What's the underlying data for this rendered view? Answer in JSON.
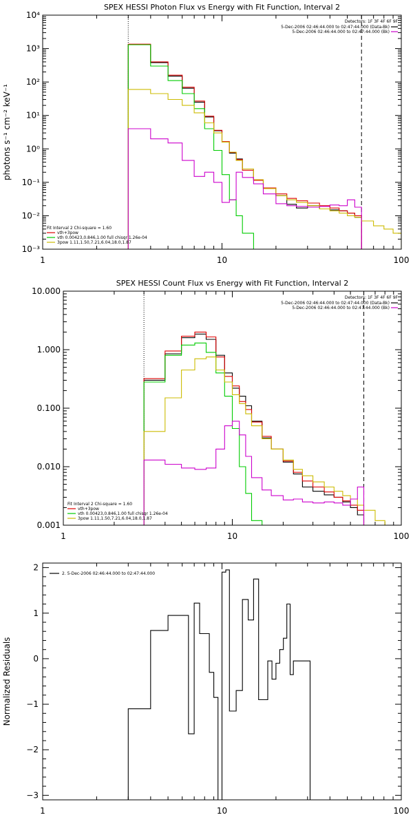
{
  "chart_data": [
    {
      "type": "line",
      "title": "SPEX HESSI Photon Flux vs Energy with Fit Function, Interval 2",
      "ylabel": "photons s⁻¹ cm⁻² keV⁻¹",
      "xlabel": "",
      "xscale": "log",
      "yscale": "log",
      "xlim": [
        1,
        100
      ],
      "ylim": [
        0.001,
        10000
      ],
      "x_ticks": [
        "1",
        "10",
        "100"
      ],
      "y_ticks": [
        "10⁻³",
        "10⁻²",
        "10⁻¹",
        "10⁰",
        "10¹",
        "10²",
        "10³",
        "10⁴"
      ],
      "vlines": [
        {
          "x": 3,
          "style": "dotted"
        },
        {
          "x": 60,
          "style": "dashed"
        }
      ],
      "legend_right": {
        "header": "Detectors: 1F 3F 4F 6F 9F",
        "entries": [
          {
            "label": "5-Dec-2006 02:46:44.000 to 02:47:44.000 (Data-Bk)",
            "color": "#000000"
          },
          {
            "label": "5-Dec-2006 02:46:44.000 to 02:47:44.000 (Bk)",
            "color": "#cc00cc"
          }
        ]
      },
      "legend_left": {
        "header": "Fit Interval 2   Chi-square = 1.60",
        "entries": [
          {
            "label": "vth+3pow",
            "color": "#dd0000"
          },
          {
            "label": "vth 0.00423,0.846,1.00   full chisqr 1.26e-04",
            "color": "#00cc00"
          },
          {
            "label": "3pow 1.11,1.50,7.21,6.04,18.0,1.87",
            "color": "#ccbb00"
          }
        ]
      },
      "series": [
        {
          "color": "#000000",
          "edges": [
            3,
            4,
            5,
            6,
            7,
            8,
            9,
            10,
            11,
            12,
            13,
            15,
            17,
            20,
            23,
            26,
            30,
            35,
            40,
            45,
            50,
            55,
            60
          ],
          "values": [
            1300,
            380,
            150,
            65,
            25,
            9,
            3.5,
            1.6,
            0.75,
            0.5,
            0.25,
            0.12,
            0.065,
            0.04,
            0.022,
            0.017,
            0.02,
            0.016,
            0.015,
            0.014,
            0.012,
            0.009
          ]
        },
        {
          "color": "#dd0000",
          "edges": [
            3,
            4,
            5,
            6,
            7,
            8,
            9,
            10,
            11,
            12,
            13,
            15,
            17,
            20,
            23,
            26,
            30,
            35,
            40,
            45,
            50,
            55,
            60
          ],
          "values": [
            1350,
            400,
            160,
            70,
            27,
            9.5,
            3.6,
            1.65,
            0.78,
            0.48,
            0.23,
            0.115,
            0.068,
            0.045,
            0.033,
            0.028,
            0.024,
            0.02,
            0.017,
            0.014,
            0.012,
            0.01
          ]
        },
        {
          "color": "#00cc00",
          "edges": [
            3,
            4,
            5,
            6,
            7,
            8,
            9,
            10,
            11,
            12,
            13,
            15
          ],
          "values": [
            1300,
            300,
            110,
            45,
            16,
            4,
            0.9,
            0.17,
            0.03,
            0.01,
            0.003,
            0.0008
          ]
        },
        {
          "color": "#ccbb00",
          "edges": [
            3,
            4,
            5,
            6,
            7,
            8,
            9,
            10,
            11,
            12,
            13,
            15,
            17,
            20,
            23,
            26,
            30,
            35,
            40,
            45,
            50,
            55,
            60,
            70,
            80,
            90,
            100
          ],
          "values": [
            60,
            45,
            30,
            20,
            12,
            6,
            3,
            1.6,
            0.8,
            0.45,
            0.25,
            0.12,
            0.065,
            0.04,
            0.03,
            0.025,
            0.02,
            0.016,
            0.014,
            0.012,
            0.01,
            0.009,
            0.007,
            0.005,
            0.004,
            0.003
          ]
        },
        {
          "color": "#cc00cc",
          "edges": [
            3,
            4,
            5,
            6,
            7,
            8,
            9,
            10,
            11,
            12,
            13,
            15,
            17,
            20,
            23,
            26,
            30,
            35,
            40,
            45,
            50,
            55,
            60
          ],
          "values": [
            4,
            2,
            1.5,
            0.45,
            0.15,
            0.2,
            0.1,
            0.025,
            0.03,
            0.2,
            0.14,
            0.09,
            0.045,
            0.023,
            0.02,
            0.019,
            0.018,
            0.019,
            0.021,
            0.02,
            0.03,
            0.018
          ]
        }
      ]
    },
    {
      "type": "line",
      "title": "SPEX HESSI Count Flux vs Energy with Fit Function, Interval 2",
      "ylabel": "",
      "xlabel": "",
      "xscale": "log",
      "yscale": "log",
      "xlim": [
        1,
        100
      ],
      "ylim": [
        0.001,
        10
      ],
      "x_ticks": [
        "1",
        "10",
        "100"
      ],
      "y_ticks": [
        "0.001",
        "0.010",
        "0.100",
        "1.000",
        "10.000"
      ],
      "vlines": [
        {
          "x": 3,
          "style": "dotted"
        },
        {
          "x": 60,
          "style": "dashed"
        }
      ],
      "legend_right": {
        "header": "Detectors: 1F 3F 4F 6F 9F",
        "entries": [
          {
            "label": "5-Dec-2006 02:46:44.000 to 02:47:44.000 (Data-Bk)",
            "color": "#000000"
          },
          {
            "label": "5-Dec-2006 02:46:44.000 to 02:47:44.000 (Bk)",
            "color": "#cc00cc"
          }
        ]
      },
      "legend_left": {
        "header": "Fit Interval 2   Chi-square = 1.60",
        "entries": [
          {
            "label": "vth+3pow",
            "color": "#dd0000"
          },
          {
            "label": "vth 0.00423,0.846,1.00   full chisqr 1.26e-04",
            "color": "#00cc00"
          },
          {
            "label": "3pow 1.11,1.50,7.21,6.04,18.0,1.87",
            "color": "#ccbb00"
          }
        ]
      },
      "series": [
        {
          "color": "#000000",
          "edges": [
            3,
            4,
            5,
            6,
            7,
            8,
            9,
            10,
            11,
            12,
            13,
            15,
            17,
            20,
            23,
            26,
            30,
            35,
            40,
            45,
            50,
            55,
            60
          ],
          "values": [
            0.3,
            0.85,
            1.6,
            1.85,
            1.5,
            0.8,
            0.4,
            0.22,
            0.16,
            0.11,
            0.06,
            0.031,
            0.02,
            0.012,
            0.0075,
            0.0045,
            0.0038,
            0.0033,
            0.003,
            0.0025,
            0.002,
            0.0015,
            0.0014
          ]
        },
        {
          "color": "#dd0000",
          "edges": [
            3,
            4,
            5,
            6,
            7,
            8,
            9,
            10,
            11,
            12,
            13,
            15,
            17,
            20,
            23,
            26,
            30,
            35,
            40,
            45,
            50,
            55,
            60
          ],
          "values": [
            0.32,
            0.95,
            1.7,
            2.0,
            1.65,
            0.75,
            0.35,
            0.24,
            0.13,
            0.095,
            0.058,
            0.033,
            0.02,
            0.0125,
            0.008,
            0.0057,
            0.0045,
            0.0037,
            0.003,
            0.0026,
            0.0022,
            0.0018,
            0.0015
          ]
        },
        {
          "color": "#00cc00",
          "edges": [
            3,
            4,
            5,
            6,
            7,
            8,
            9,
            10,
            11,
            12,
            13,
            15
          ],
          "values": [
            0.28,
            0.8,
            1.2,
            1.3,
            0.9,
            0.4,
            0.16,
            0.045,
            0.01,
            0.0035,
            0.0012,
            0.0008
          ]
        },
        {
          "color": "#ccbb00",
          "edges": [
            3,
            4,
            5,
            6,
            7,
            8,
            9,
            10,
            11,
            12,
            13,
            15,
            17,
            20,
            23,
            26,
            30,
            35,
            40,
            45,
            50,
            55,
            60,
            70,
            80,
            90
          ],
          "values": [
            0.04,
            0.15,
            0.45,
            0.7,
            0.75,
            0.45,
            0.28,
            0.17,
            0.12,
            0.08,
            0.05,
            0.03,
            0.02,
            0.013,
            0.009,
            0.007,
            0.0055,
            0.0045,
            0.0038,
            0.0032,
            0.0028,
            0.0022,
            0.0018,
            0.0012,
            0.0009
          ]
        },
        {
          "color": "#cc00cc",
          "edges": [
            3,
            4,
            5,
            6,
            7,
            8,
            9,
            10,
            11,
            12,
            13,
            15,
            17,
            20,
            23,
            26,
            30,
            35,
            40,
            45,
            50,
            55,
            60
          ],
          "values": [
            0.013,
            0.011,
            0.0095,
            0.009,
            0.0095,
            0.02,
            0.05,
            0.06,
            0.035,
            0.015,
            0.0065,
            0.004,
            0.0032,
            0.0027,
            0.0028,
            0.0025,
            0.0024,
            0.0025,
            0.0024,
            0.0022,
            0.0028,
            0.0045,
            0.0028
          ]
        }
      ]
    },
    {
      "type": "line",
      "title": "",
      "ylabel": "Normalized Residuals",
      "xlabel": "",
      "xscale": "log",
      "yscale": "linear",
      "xlim": [
        1,
        100
      ],
      "ylim": [
        -3.1,
        2.1
      ],
      "x_ticks": [
        "1",
        "10",
        "100"
      ],
      "y_ticks": [
        "−3",
        "−2",
        "−1",
        "0",
        "1",
        "2"
      ],
      "vlines": [],
      "legend_left": {
        "header": "",
        "entries": [
          {
            "label": "2.  5-Dec-2006 02:46:44.000 to 02:47:44.000",
            "color": "#000000"
          }
        ]
      },
      "series": [
        {
          "color": "#000000",
          "edges": [
            3,
            3.5,
            4,
            4.5,
            5,
            6,
            6.5,
            7,
            7.5,
            8,
            8.5,
            9,
            9.5,
            10,
            10.5,
            11,
            12,
            13,
            14,
            15,
            16,
            17,
            18,
            19,
            20,
            21,
            22,
            23,
            24,
            25,
            26,
            27,
            28,
            29,
            30,
            31
          ],
          "values": [
            -1.1,
            -1.1,
            0.62,
            0.62,
            0.95,
            0.95,
            -1.65,
            1.22,
            0.55,
            0.55,
            -0.3,
            -0.85,
            -3.1,
            1.9,
            1.95,
            -1.15,
            -0.7,
            1.3,
            0.85,
            1.75,
            -0.9,
            -0.9,
            -0.05,
            -0.45,
            -0.1,
            0.2,
            0.45,
            1.2,
            -0.35,
            -0.05,
            -0.05,
            -0.05,
            -0.05,
            -0.05,
            -0.05
          ],
          "clip": true
        }
      ]
    }
  ]
}
